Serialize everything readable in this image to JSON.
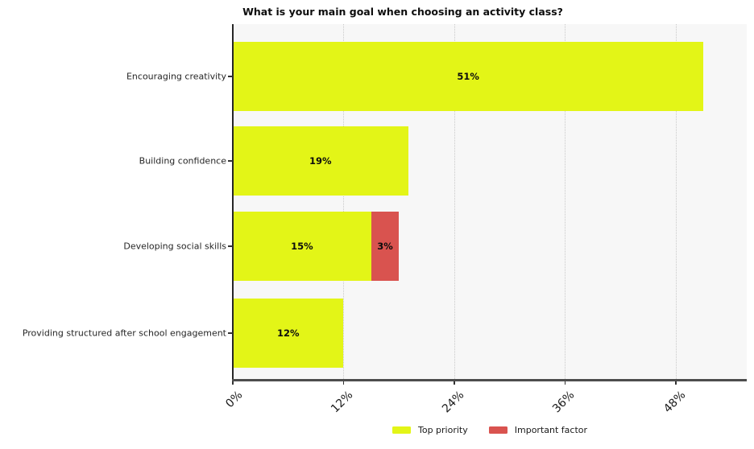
{
  "chart_data": {
    "type": "bar",
    "orientation": "horizontal",
    "stacked": true,
    "title": "What is your main goal when choosing an activity class?",
    "categories": [
      "Encouraging creativity",
      "Building confidence",
      "Developing social skills",
      "Providing structured after school engagement"
    ],
    "series": [
      {
        "name": "Top priority",
        "color": "#e3f517",
        "values": [
          51,
          19,
          15,
          12
        ]
      },
      {
        "name": "Important factor",
        "color": "#d9534f",
        "values": [
          0,
          0,
          3,
          0
        ]
      }
    ],
    "bar_labels": [
      [
        "51%",
        "19%",
        "15%",
        "12%"
      ],
      [
        "",
        "",
        "3%",
        ""
      ]
    ],
    "x_tick_values": [
      0,
      12,
      24,
      36,
      48
    ],
    "x_tick_labels": [
      "0%",
      "12%",
      "24%",
      "36%",
      "48%"
    ],
    "xlim": [
      0,
      55.7
    ],
    "grid": "vertical-dotted",
    "plot_background": "#f7f7f7",
    "legend_position": "bottom center"
  }
}
